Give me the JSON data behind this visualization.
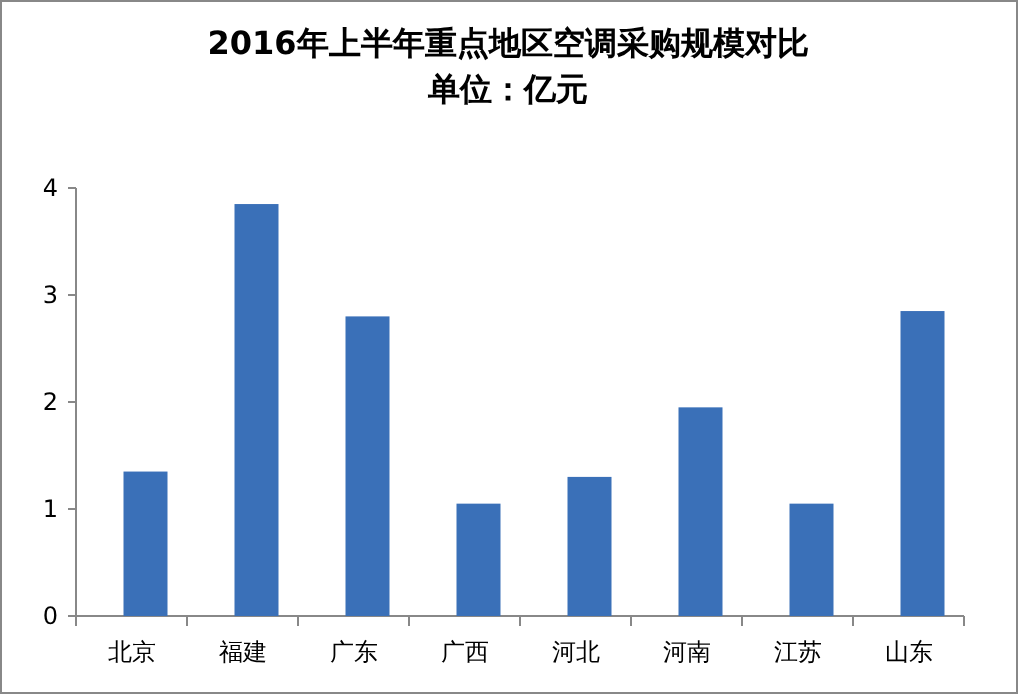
{
  "chart_data": {
    "type": "bar",
    "title": "2016年上半年重点地区空调采购规模对比",
    "subtitle": "单位：亿元",
    "categories": [
      "北京",
      "福建",
      "广东",
      "广西",
      "河北",
      "河南",
      "江苏",
      "山东"
    ],
    "values": [
      1.35,
      3.85,
      2.8,
      1.05,
      1.3,
      1.95,
      1.05,
      2.85
    ],
    "color": "#3a70b8",
    "ylim": [
      0,
      4
    ],
    "yticks": [
      0,
      1,
      2,
      3,
      4
    ],
    "grid": false
  }
}
